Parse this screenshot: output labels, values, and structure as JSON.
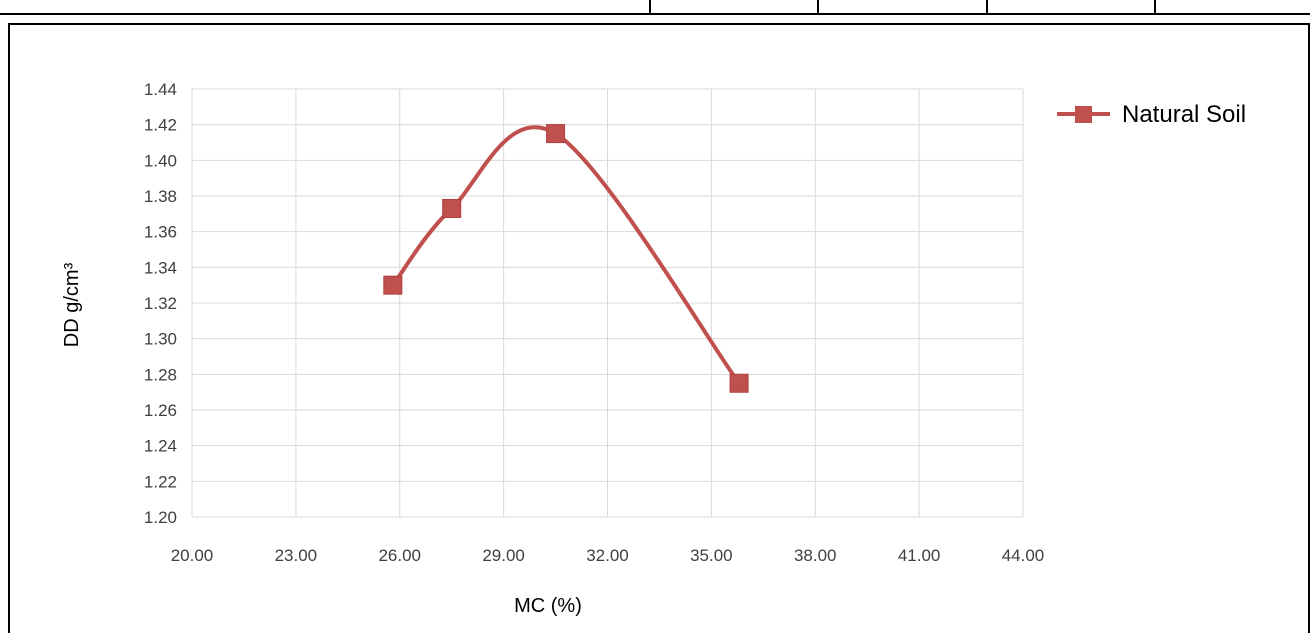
{
  "chart_data": {
    "type": "scatter",
    "title": "",
    "xlabel": "MC (%)",
    "ylabel": "DD g/cm³",
    "xlim": [
      20,
      44
    ],
    "ylim": [
      1.2,
      1.44
    ],
    "x_ticks": [
      "20.00",
      "23.00",
      "26.00",
      "29.00",
      "32.00",
      "35.00",
      "38.00",
      "41.00",
      "44.00"
    ],
    "y_ticks": [
      "1.20",
      "1.22",
      "1.24",
      "1.26",
      "1.28",
      "1.30",
      "1.32",
      "1.34",
      "1.36",
      "1.38",
      "1.40",
      "1.42",
      "1.44"
    ],
    "grid": true,
    "legend_position": "top-right",
    "series": [
      {
        "name": "Natural Soil",
        "color": "#C0504D",
        "marker": "square",
        "line": "smooth",
        "points": [
          {
            "x": 25.8,
            "y": 1.33
          },
          {
            "x": 27.5,
            "y": 1.373
          },
          {
            "x": 30.5,
            "y": 1.415
          },
          {
            "x": 35.8,
            "y": 1.275
          }
        ]
      }
    ]
  }
}
